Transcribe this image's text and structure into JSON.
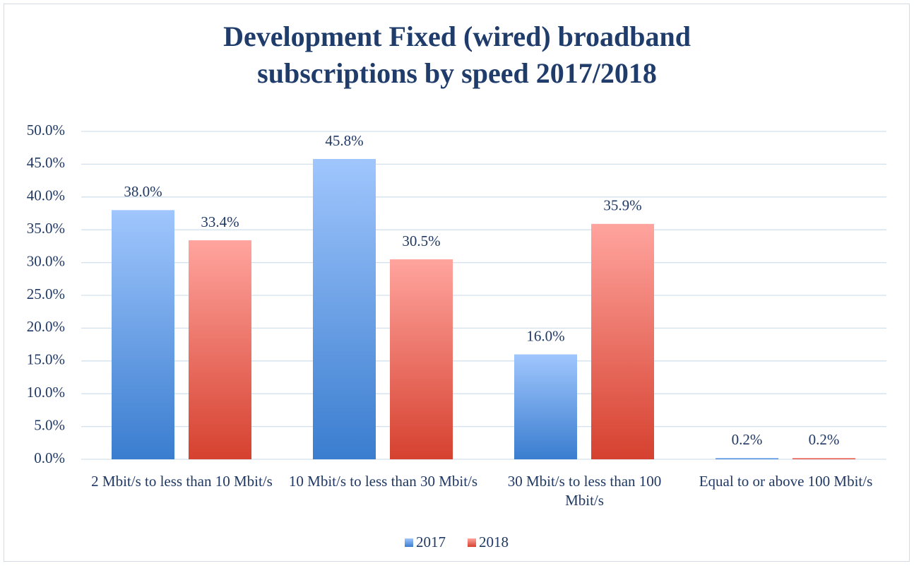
{
  "chart_data": {
    "type": "bar",
    "title": "Development Fixed (wired) broadband subscriptions by speed 2017/2018",
    "categories": [
      "2 Mbit/s to less than 10 Mbit/s",
      "10 Mbit/s to less than 30 Mbit/s",
      "30 Mbit/s to less than 100 Mbit/s",
      "Equal to or above 100 Mbit/s"
    ],
    "series": [
      {
        "name": "2017",
        "color": [
          "#a0c6fd",
          "#3a7dcf"
        ],
        "values": [
          38.0,
          45.8,
          16.0,
          0.2
        ],
        "value_labels": [
          "38.0%",
          "45.8%",
          "16.0%",
          "0.2%"
        ]
      },
      {
        "name": "2018",
        "color": [
          "#ffa49e",
          "#d6412f"
        ],
        "values": [
          33.4,
          30.5,
          35.9,
          0.2
        ],
        "value_labels": [
          "33.4%",
          "30.5%",
          "35.9%",
          "0.2%"
        ]
      }
    ],
    "ylim": [
      0,
      50
    ],
    "yticks": [
      {
        "value": 0,
        "label": "0.0%"
      },
      {
        "value": 5,
        "label": "5.0%"
      },
      {
        "value": 10,
        "label": "10.0%"
      },
      {
        "value": 15,
        "label": "15.0%"
      },
      {
        "value": 20,
        "label": "20.0%"
      },
      {
        "value": 25,
        "label": "25.0%"
      },
      {
        "value": 30,
        "label": "30.0%"
      },
      {
        "value": 35,
        "label": "35.0%"
      },
      {
        "value": 40,
        "label": "40.0%"
      },
      {
        "value": 45,
        "label": "45.0%"
      },
      {
        "value": 50,
        "label": "50.0%"
      }
    ],
    "grid": true,
    "legend": "bottom"
  }
}
